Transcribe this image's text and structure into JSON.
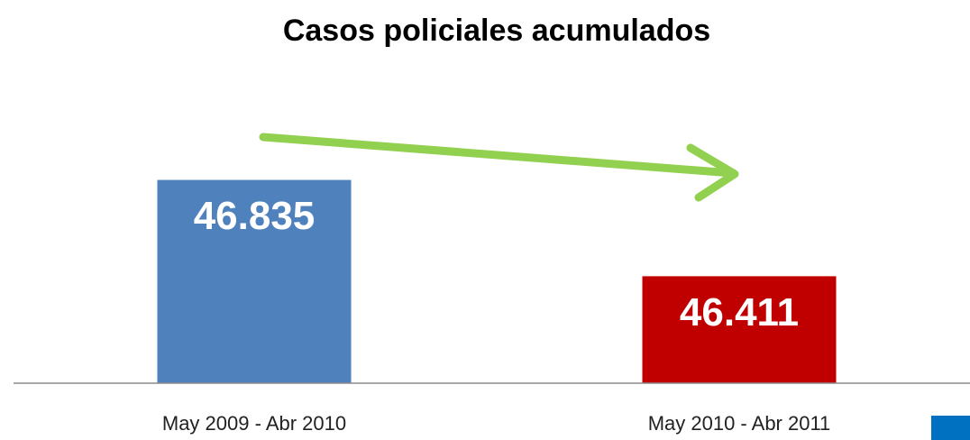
{
  "chart_data": {
    "type": "bar",
    "title": "Casos policiales acumulados",
    "categories": [
      "May 2009 - Abr 2010",
      "May 2010 - Abr 2011"
    ],
    "values": [
      46835,
      46411
    ],
    "value_labels": [
      "46.835",
      "46.411"
    ],
    "colors": [
      "#4f81bd",
      "#c00000"
    ],
    "ylim": [
      45940,
      47000
    ]
  }
}
